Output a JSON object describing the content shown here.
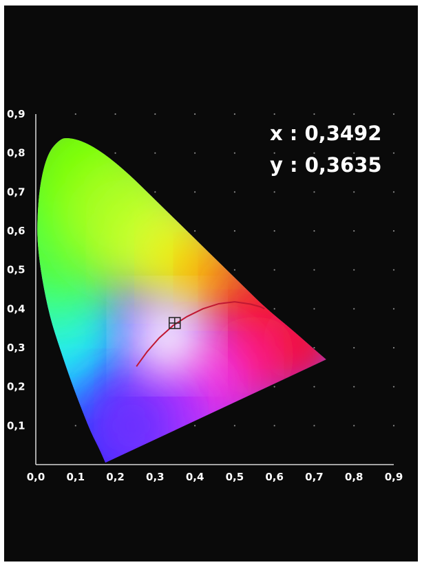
{
  "chart_data": {
    "type": "scatter",
    "title": "",
    "xlabel": "",
    "ylabel": "",
    "xlim": [
      0.0,
      0.9
    ],
    "ylim": [
      0.0,
      0.9
    ],
    "grid": "dotted",
    "x_ticks": [
      "0,0",
      "0,1",
      "0,2",
      "0,3",
      "0,4",
      "0,5",
      "0,6",
      "0,7",
      "0,8",
      "0,9"
    ],
    "y_ticks": [
      "0,1",
      "0,2",
      "0,3",
      "0,4",
      "0,5",
      "0,6",
      "0,7",
      "0,8",
      "0,9"
    ],
    "annotation": {
      "x_label": "x : 0,3492",
      "y_label": "y : 0,3635"
    },
    "point": {
      "x": 0.3492,
      "y": 0.3635
    },
    "locus": [
      [
        0.175,
        0.005
      ],
      [
        0.16,
        0.04
      ],
      [
        0.14,
        0.08
      ],
      [
        0.12,
        0.13
      ],
      [
        0.09,
        0.21
      ],
      [
        0.06,
        0.3
      ],
      [
        0.035,
        0.38
      ],
      [
        0.015,
        0.48
      ],
      [
        0.005,
        0.56
      ],
      [
        0.003,
        0.62
      ],
      [
        0.01,
        0.72
      ],
      [
        0.03,
        0.8
      ],
      [
        0.06,
        0.835
      ],
      [
        0.08,
        0.84
      ],
      [
        0.12,
        0.83
      ],
      [
        0.17,
        0.8
      ],
      [
        0.23,
        0.75
      ],
      [
        0.3,
        0.68
      ],
      [
        0.38,
        0.6
      ],
      [
        0.45,
        0.53
      ],
      [
        0.52,
        0.46
      ],
      [
        0.58,
        0.4
      ],
      [
        0.64,
        0.35
      ],
      [
        0.69,
        0.305
      ],
      [
        0.73,
        0.27
      ]
    ],
    "planckian": [
      [
        0.253,
        0.252
      ],
      [
        0.28,
        0.29
      ],
      [
        0.31,
        0.325
      ],
      [
        0.345,
        0.357
      ],
      [
        0.38,
        0.38
      ],
      [
        0.42,
        0.4
      ],
      [
        0.46,
        0.413
      ],
      [
        0.5,
        0.418
      ],
      [
        0.54,
        0.412
      ],
      [
        0.565,
        0.405
      ],
      [
        0.575,
        0.4
      ]
    ],
    "colors": {
      "panel": "#0a0a0a",
      "text": "#ffffff",
      "planckian": "#c01832",
      "marker": "#2a2a2a"
    }
  }
}
